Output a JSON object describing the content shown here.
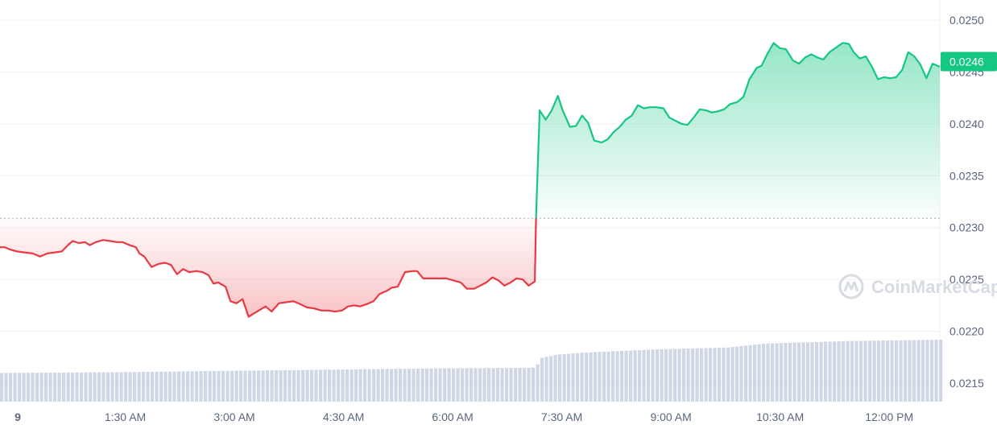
{
  "watermark": {
    "text": "CoinMarketCap"
  },
  "colors": {
    "up": "#16c784",
    "down": "#ea3943",
    "volume": "#cfd6e4",
    "grid": "#eff2f5",
    "baseline": "#a1a7bb"
  },
  "chart_data": {
    "type": "line",
    "title": "",
    "xlabel": "",
    "ylabel": "",
    "y_axis_position": "right",
    "ylim": [
      0.02135,
      0.0252
    ],
    "y_ticks": [
      "0.0250",
      "0.0245",
      "0.0240",
      "0.0235",
      "0.0230",
      "0.0225",
      "0.0220",
      "0.0215"
    ],
    "y_tick_values": [
      0.025,
      0.0245,
      0.024,
      0.0235,
      0.023,
      0.0225,
      0.022,
      0.0215
    ],
    "x_ticks": [
      "9",
      "1:30 AM",
      "3:00 AM",
      "4:30 AM",
      "6:00 AM",
      "7:30 AM",
      "9:00 AM",
      "10:30 AM",
      "12:00 PM"
    ],
    "x_tick_values": [
      0,
      90,
      180,
      270,
      360,
      450,
      540,
      630,
      720
    ],
    "x_range": [
      0,
      775
    ],
    "baseline_value": 0.02309,
    "current_price_label": "0.0246",
    "current_price": 0.0246,
    "grid": true,
    "series": [
      {
        "values": [
          [
            0,
            0.02281
          ],
          [
            4,
            0.02281
          ],
          [
            8,
            0.02279
          ],
          [
            14,
            0.02277
          ],
          [
            20,
            0.02276
          ],
          [
            27,
            0.02275
          ],
          [
            33,
            0.02272
          ],
          [
            39,
            0.02275
          ],
          [
            45,
            0.02276
          ],
          [
            51,
            0.02277
          ],
          [
            56,
            0.02283
          ],
          [
            60,
            0.02287
          ],
          [
            65,
            0.02285
          ],
          [
            70,
            0.02286
          ],
          [
            74,
            0.02283
          ],
          [
            79,
            0.02286
          ],
          [
            85,
            0.02288
          ],
          [
            91,
            0.02287
          ],
          [
            96,
            0.02286
          ],
          [
            101,
            0.02286
          ],
          [
            107,
            0.02283
          ],
          [
            112,
            0.02281
          ],
          [
            115,
            0.02275
          ],
          [
            119,
            0.02272
          ],
          [
            125,
            0.02262
          ],
          [
            131,
            0.02265
          ],
          [
            136,
            0.02266
          ],
          [
            141,
            0.02264
          ],
          [
            146,
            0.02255
          ],
          [
            151,
            0.0226
          ],
          [
            156,
            0.02257
          ],
          [
            162,
            0.02258
          ],
          [
            167,
            0.02257
          ],
          [
            172,
            0.02254
          ],
          [
            176,
            0.02246
          ],
          [
            180,
            0.02247
          ],
          [
            186,
            0.02243
          ],
          [
            190,
            0.02229
          ],
          [
            195,
            0.02227
          ],
          [
            200,
            0.02231
          ],
          [
            205,
            0.02214
          ],
          [
            212,
            0.02219
          ],
          [
            219,
            0.02224
          ],
          [
            224,
            0.02219
          ],
          [
            230,
            0.02227
          ],
          [
            236,
            0.02228
          ],
          [
            242,
            0.02229
          ],
          [
            248,
            0.02226
          ],
          [
            253,
            0.02223
          ],
          [
            259,
            0.02222
          ],
          [
            265,
            0.0222
          ],
          [
            271,
            0.0222
          ],
          [
            276,
            0.02219
          ],
          [
            282,
            0.0222
          ],
          [
            287,
            0.02224
          ],
          [
            292,
            0.02225
          ],
          [
            297,
            0.02224
          ],
          [
            302,
            0.02226
          ],
          [
            308,
            0.02229
          ],
          [
            313,
            0.02236
          ],
          [
            319,
            0.02239
          ],
          [
            323,
            0.02242
          ],
          [
            328,
            0.02243
          ],
          [
            334,
            0.02257
          ],
          [
            340,
            0.02258
          ],
          [
            344,
            0.02258
          ],
          [
            349,
            0.02251
          ],
          [
            355,
            0.02251
          ],
          [
            362,
            0.02251
          ],
          [
            368,
            0.02251
          ],
          [
            374,
            0.02249
          ],
          [
            380,
            0.02247
          ],
          [
            385,
            0.02241
          ],
          [
            391,
            0.02241
          ],
          [
            396,
            0.02244
          ],
          [
            401,
            0.02247
          ],
          [
            406,
            0.02252
          ],
          [
            411,
            0.02249
          ],
          [
            416,
            0.02244
          ],
          [
            421,
            0.02247
          ],
          [
            426,
            0.02251
          ],
          [
            431,
            0.0225
          ],
          [
            436,
            0.02244
          ],
          [
            441,
            0.02248
          ],
          [
            442,
            0.02309
          ]
        ]
      },
      {
        "values": [
          [
            442,
            0.02309
          ],
          [
            445,
            0.02413
          ],
          [
            450,
            0.02404
          ],
          [
            455,
            0.02413
          ],
          [
            460,
            0.02427
          ],
          [
            464,
            0.02413
          ],
          [
            470,
            0.02397
          ],
          [
            475,
            0.02398
          ],
          [
            480,
            0.02408
          ],
          [
            485,
            0.02401
          ],
          [
            490,
            0.02384
          ],
          [
            496,
            0.02382
          ],
          [
            501,
            0.02385
          ],
          [
            506,
            0.02392
          ],
          [
            511,
            0.02397
          ],
          [
            516,
            0.02404
          ],
          [
            521,
            0.02408
          ],
          [
            526,
            0.02418
          ],
          [
            531,
            0.02415
          ],
          [
            536,
            0.02416
          ],
          [
            541,
            0.02416
          ],
          [
            547,
            0.02415
          ],
          [
            552,
            0.02406
          ],
          [
            557,
            0.02403
          ],
          [
            562,
            0.024
          ],
          [
            567,
            0.02399
          ],
          [
            572,
            0.02406
          ],
          [
            577,
            0.02414
          ],
          [
            582,
            0.02413
          ],
          [
            587,
            0.02411
          ],
          [
            592,
            0.02412
          ],
          [
            597,
            0.02414
          ],
          [
            602,
            0.02419
          ],
          [
            608,
            0.02421
          ],
          [
            613,
            0.02426
          ],
          [
            618,
            0.02443
          ],
          [
            624,
            0.02454
          ],
          [
            628,
            0.02456
          ],
          [
            633,
            0.02468
          ],
          [
            638,
            0.02478
          ],
          [
            643,
            0.02473
          ],
          [
            648,
            0.02472
          ],
          [
            654,
            0.02461
          ],
          [
            659,
            0.02458
          ],
          [
            664,
            0.02464
          ],
          [
            669,
            0.02467
          ],
          [
            674,
            0.02464
          ],
          [
            679,
            0.02462
          ],
          [
            684,
            0.02469
          ],
          [
            690,
            0.02474
          ],
          [
            695,
            0.02478
          ],
          [
            700,
            0.02477
          ],
          [
            704,
            0.02469
          ],
          [
            709,
            0.02463
          ],
          [
            714,
            0.02465
          ],
          [
            719,
            0.02455
          ],
          [
            724,
            0.02443
          ],
          [
            729,
            0.02445
          ],
          [
            734,
            0.02444
          ],
          [
            739,
            0.02445
          ],
          [
            744,
            0.02452
          ],
          [
            749,
            0.02469
          ],
          [
            754,
            0.02465
          ],
          [
            759,
            0.02457
          ],
          [
            764,
            0.02444
          ],
          [
            769,
            0.02458
          ],
          [
            775,
            0.02455
          ]
        ]
      }
    ],
    "volume": [
      [
        0,
        0.44
      ],
      [
        90,
        0.45
      ],
      [
        180,
        0.47
      ],
      [
        270,
        0.49
      ],
      [
        360,
        0.51
      ],
      [
        442,
        0.52
      ],
      [
        446,
        0.67
      ],
      [
        460,
        0.72
      ],
      [
        480,
        0.75
      ],
      [
        540,
        0.8
      ],
      [
        600,
        0.83
      ],
      [
        630,
        0.89
      ],
      [
        700,
        0.93
      ],
      [
        775,
        0.95
      ]
    ]
  }
}
